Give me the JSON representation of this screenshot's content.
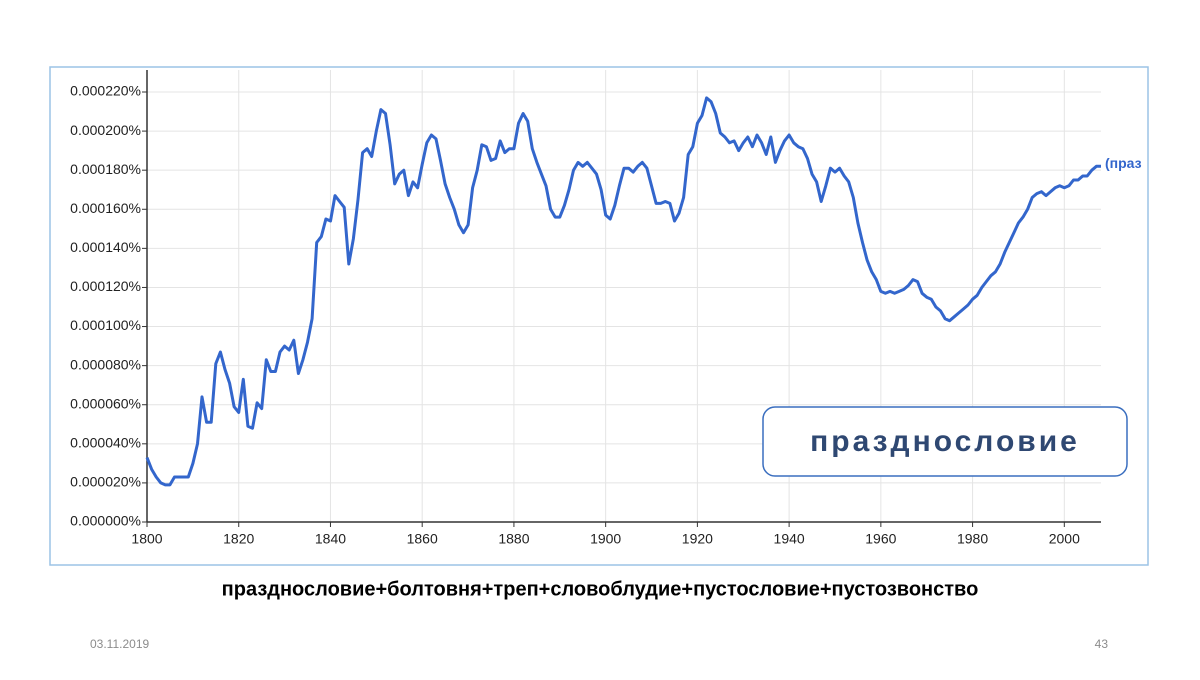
{
  "chart_data": {
    "type": "line",
    "x": [
      1800,
      1801,
      1802,
      1803,
      1804,
      1805,
      1806,
      1807,
      1808,
      1809,
      1810,
      1811,
      1812,
      1813,
      1814,
      1815,
      1816,
      1817,
      1818,
      1819,
      1820,
      1821,
      1822,
      1823,
      1824,
      1825,
      1826,
      1827,
      1828,
      1829,
      1830,
      1831,
      1832,
      1833,
      1834,
      1835,
      1836,
      1837,
      1838,
      1839,
      1840,
      1841,
      1842,
      1843,
      1844,
      1845,
      1846,
      1847,
      1848,
      1849,
      1850,
      1851,
      1852,
      1853,
      1854,
      1855,
      1856,
      1857,
      1858,
      1859,
      1860,
      1861,
      1862,
      1863,
      1864,
      1865,
      1866,
      1867,
      1868,
      1869,
      1870,
      1871,
      1872,
      1873,
      1874,
      1875,
      1876,
      1877,
      1878,
      1879,
      1880,
      1881,
      1882,
      1883,
      1884,
      1885,
      1886,
      1887,
      1888,
      1889,
      1890,
      1891,
      1892,
      1893,
      1894,
      1895,
      1896,
      1897,
      1898,
      1899,
      1900,
      1901,
      1902,
      1903,
      1904,
      1905,
      1906,
      1907,
      1908,
      1909,
      1910,
      1911,
      1912,
      1913,
      1914,
      1915,
      1916,
      1917,
      1918,
      1919,
      1920,
      1921,
      1922,
      1923,
      1924,
      1925,
      1926,
      1927,
      1928,
      1929,
      1930,
      1931,
      1932,
      1933,
      1934,
      1935,
      1936,
      1937,
      1938,
      1939,
      1940,
      1941,
      1942,
      1943,
      1944,
      1945,
      1946,
      1947,
      1948,
      1949,
      1950,
      1951,
      1952,
      1953,
      1954,
      1955,
      1956,
      1957,
      1958,
      1959,
      1960,
      1961,
      1962,
      1963,
      1964,
      1965,
      1966,
      1967,
      1968,
      1969,
      1970,
      1971,
      1972,
      1973,
      1974,
      1975,
      1976,
      1977,
      1978,
      1979,
      1980,
      1981,
      1982,
      1983,
      1984,
      1985,
      1986,
      1987,
      1988,
      1989,
      1990,
      1991,
      1992,
      1993,
      1994,
      1995,
      1996,
      1997,
      1998,
      1999,
      2000,
      2001,
      2002,
      2003,
      2004,
      2005,
      2006,
      2007,
      2008
    ],
    "series": [
      {
        "name": "(праз",
        "color": "#3366cc",
        "values": [
          3.3e-05,
          2.7e-05,
          2.3e-05,
          2e-05,
          1.9e-05,
          1.9e-05,
          2.3e-05,
          2.3e-05,
          2.3e-05,
          2.3e-05,
          3e-05,
          4e-05,
          6.4e-05,
          5.1e-05,
          5.1e-05,
          8.1e-05,
          8.7e-05,
          7.8e-05,
          7.1e-05,
          5.9e-05,
          5.6e-05,
          7.3e-05,
          4.9e-05,
          4.8e-05,
          6.1e-05,
          5.8e-05,
          8.3e-05,
          7.7e-05,
          7.7e-05,
          8.7e-05,
          9e-05,
          8.8e-05,
          9.3e-05,
          7.6e-05,
          8.3e-05,
          9.2e-05,
          0.000104,
          0.000143,
          0.000146,
          0.000155,
          0.000154,
          0.000167,
          0.000164,
          0.000161,
          0.000132,
          0.000145,
          0.000165,
          0.000189,
          0.000191,
          0.000187,
          0.0002,
          0.000211,
          0.000209,
          0.000193,
          0.000173,
          0.000178,
          0.00018,
          0.000167,
          0.000174,
          0.000171,
          0.000183,
          0.000194,
          0.000198,
          0.000196,
          0.000185,
          0.000173,
          0.000166,
          0.00016,
          0.000152,
          0.000148,
          0.000152,
          0.000171,
          0.00018,
          0.000193,
          0.000192,
          0.000185,
          0.000186,
          0.000195,
          0.000189,
          0.000191,
          0.000191,
          0.000204,
          0.000209,
          0.000205,
          0.000191,
          0.000184,
          0.000178,
          0.000172,
          0.00016,
          0.000156,
          0.000156,
          0.000162,
          0.00017,
          0.00018,
          0.000184,
          0.000182,
          0.000184,
          0.000181,
          0.000178,
          0.00017,
          0.000157,
          0.000155,
          0.000162,
          0.000172,
          0.000181,
          0.000181,
          0.000179,
          0.000182,
          0.000184,
          0.000181,
          0.000172,
          0.000163,
          0.000163,
          0.000164,
          0.000163,
          0.000154,
          0.000158,
          0.000166,
          0.000188,
          0.000192,
          0.000204,
          0.000208,
          0.000217,
          0.000215,
          0.000209,
          0.000199,
          0.000197,
          0.000194,
          0.000195,
          0.00019,
          0.000194,
          0.000197,
          0.000192,
          0.000198,
          0.000194,
          0.000188,
          0.000197,
          0.000184,
          0.00019,
          0.000195,
          0.000198,
          0.000194,
          0.000192,
          0.000191,
          0.000186,
          0.000178,
          0.000174,
          0.000164,
          0.000172,
          0.000181,
          0.000179,
          0.000181,
          0.000177,
          0.000174,
          0.000166,
          0.000153,
          0.000143,
          0.000134,
          0.000128,
          0.000124,
          0.000118,
          0.000117,
          0.000118,
          0.000117,
          0.000118,
          0.000119,
          0.000121,
          0.000124,
          0.000123,
          0.000117,
          0.000115,
          0.000114,
          0.00011,
          0.000108,
          0.000104,
          0.000103,
          0.000105,
          0.000107,
          0.000109,
          0.000111,
          0.000114,
          0.000116,
          0.00012,
          0.000123,
          0.000126,
          0.000128,
          0.000132,
          0.000138,
          0.000143,
          0.000148,
          0.000153,
          0.000156,
          0.00016,
          0.000166,
          0.000168,
          0.000169,
          0.000167,
          0.000169,
          0.000171,
          0.000172,
          0.000171,
          0.000172,
          0.000175,
          0.000175,
          0.000177,
          0.000177,
          0.00018,
          0.000182,
          0.000182
        ]
      }
    ],
    "xlim": [
      1800,
      2008
    ],
    "xticks": [
      1800,
      1820,
      1840,
      1860,
      1880,
      1900,
      1920,
      1940,
      1960,
      1980,
      2000
    ],
    "ylim": [
      0,
      0.00022
    ],
    "yticks": [
      {
        "value": 0,
        "label": "0.000000%"
      },
      {
        "value": 2e-05,
        "label": "0.000020%"
      },
      {
        "value": 4e-05,
        "label": "0.000040%"
      },
      {
        "value": 6e-05,
        "label": "0.000060%"
      },
      {
        "value": 8e-05,
        "label": "0.000080%"
      },
      {
        "value": 0.0001,
        "label": "0.000100%"
      },
      {
        "value": 0.00012,
        "label": "0.000120%"
      },
      {
        "value": 0.00014,
        "label": "0.000140%"
      },
      {
        "value": 0.00016,
        "label": "0.000160%"
      },
      {
        "value": 0.00018,
        "label": "0.000180%"
      },
      {
        "value": 0.0002,
        "label": "0.000200%"
      },
      {
        "value": 0.00022,
        "label": "0.000220%"
      }
    ],
    "grid": true
  },
  "slide": {
    "label_box": "празднословие",
    "caption": "празднословие+болтовня+треп+словоблудие+пустословие+пустозвонство",
    "date": "03.11.2019",
    "page": "43"
  }
}
